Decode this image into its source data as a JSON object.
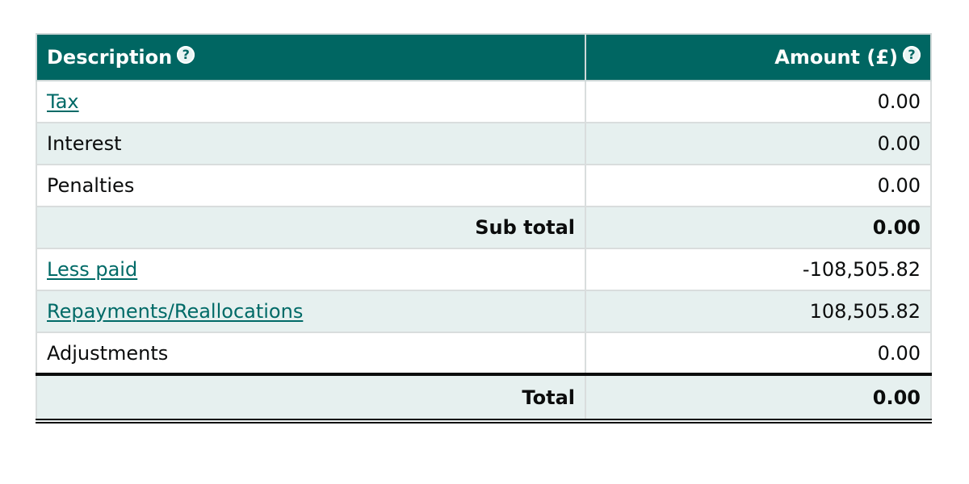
{
  "table": {
    "headers": {
      "description": "Description",
      "amount": "Amount (£)"
    },
    "help_glyph": "?",
    "rows": [
      {
        "label": "Tax",
        "amount": "0.00",
        "link": true
      },
      {
        "label": "Interest",
        "amount": "0.00",
        "link": false
      },
      {
        "label": "Penalties",
        "amount": "0.00",
        "link": false
      },
      {
        "label": "Sub total",
        "amount": "0.00",
        "subtotal": true
      },
      {
        "label": "Less paid",
        "amount": "-108,505.82",
        "link": true
      },
      {
        "label": "Repayments/Reallocations",
        "amount": "108,505.82",
        "link": true
      },
      {
        "label": "Adjustments",
        "amount": "0.00",
        "link": false
      }
    ],
    "total": {
      "label": "Total",
      "amount": "0.00"
    }
  },
  "icons": {
    "help": "help-question-icon"
  },
  "colors": {
    "header_bg": "#006662",
    "alt_row_bg": "#e6f0ef",
    "link": "#006a67"
  }
}
